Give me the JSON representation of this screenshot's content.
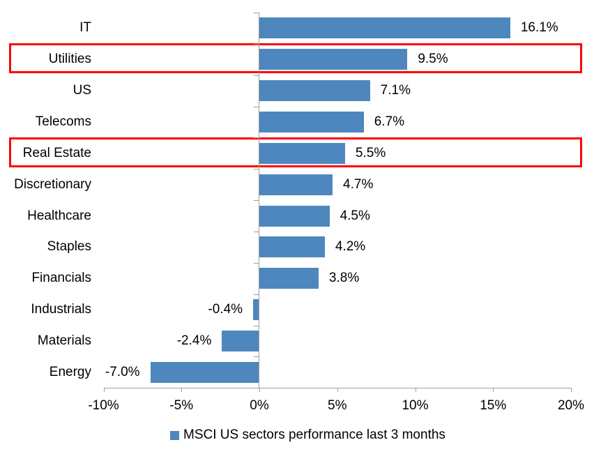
{
  "chart_data": {
    "type": "bar",
    "orientation": "horizontal",
    "title": "",
    "categories": [
      "IT",
      "Utilities",
      "US",
      "Telecoms",
      "Real Estate",
      "Discretionary",
      "Healthcare",
      "Staples",
      "Financials",
      "Industrials",
      "Materials",
      "Energy"
    ],
    "values": [
      16.1,
      9.5,
      7.1,
      6.7,
      5.5,
      4.7,
      4.5,
      4.2,
      3.8,
      -0.4,
      -2.4,
      -7.0
    ],
    "value_labels": [
      "16.1%",
      "9.5%",
      "7.1%",
      "6.7%",
      "5.5%",
      "4.7%",
      "4.5%",
      "4.2%",
      "3.8%",
      "-0.4%",
      "-2.4%",
      "-7.0%"
    ],
    "highlighted_categories": [
      "Utilities",
      "Real Estate"
    ],
    "x_ticks": [
      -10,
      -5,
      0,
      5,
      10,
      15,
      20
    ],
    "x_tick_labels": [
      "-10%",
      "-5%",
      "0%",
      "5%",
      "10%",
      "15%",
      "20%"
    ],
    "xlim": [
      -10,
      20
    ],
    "grid": false,
    "legend_position": "bottom",
    "legend": [
      {
        "label": "MSCI US sectors performance last 3 months",
        "color": "#4e87be"
      }
    ],
    "colors": {
      "bar": "#4e87be",
      "highlight_border": "#ff0000",
      "axis": "#9e9e9e",
      "text": "#000000"
    }
  }
}
